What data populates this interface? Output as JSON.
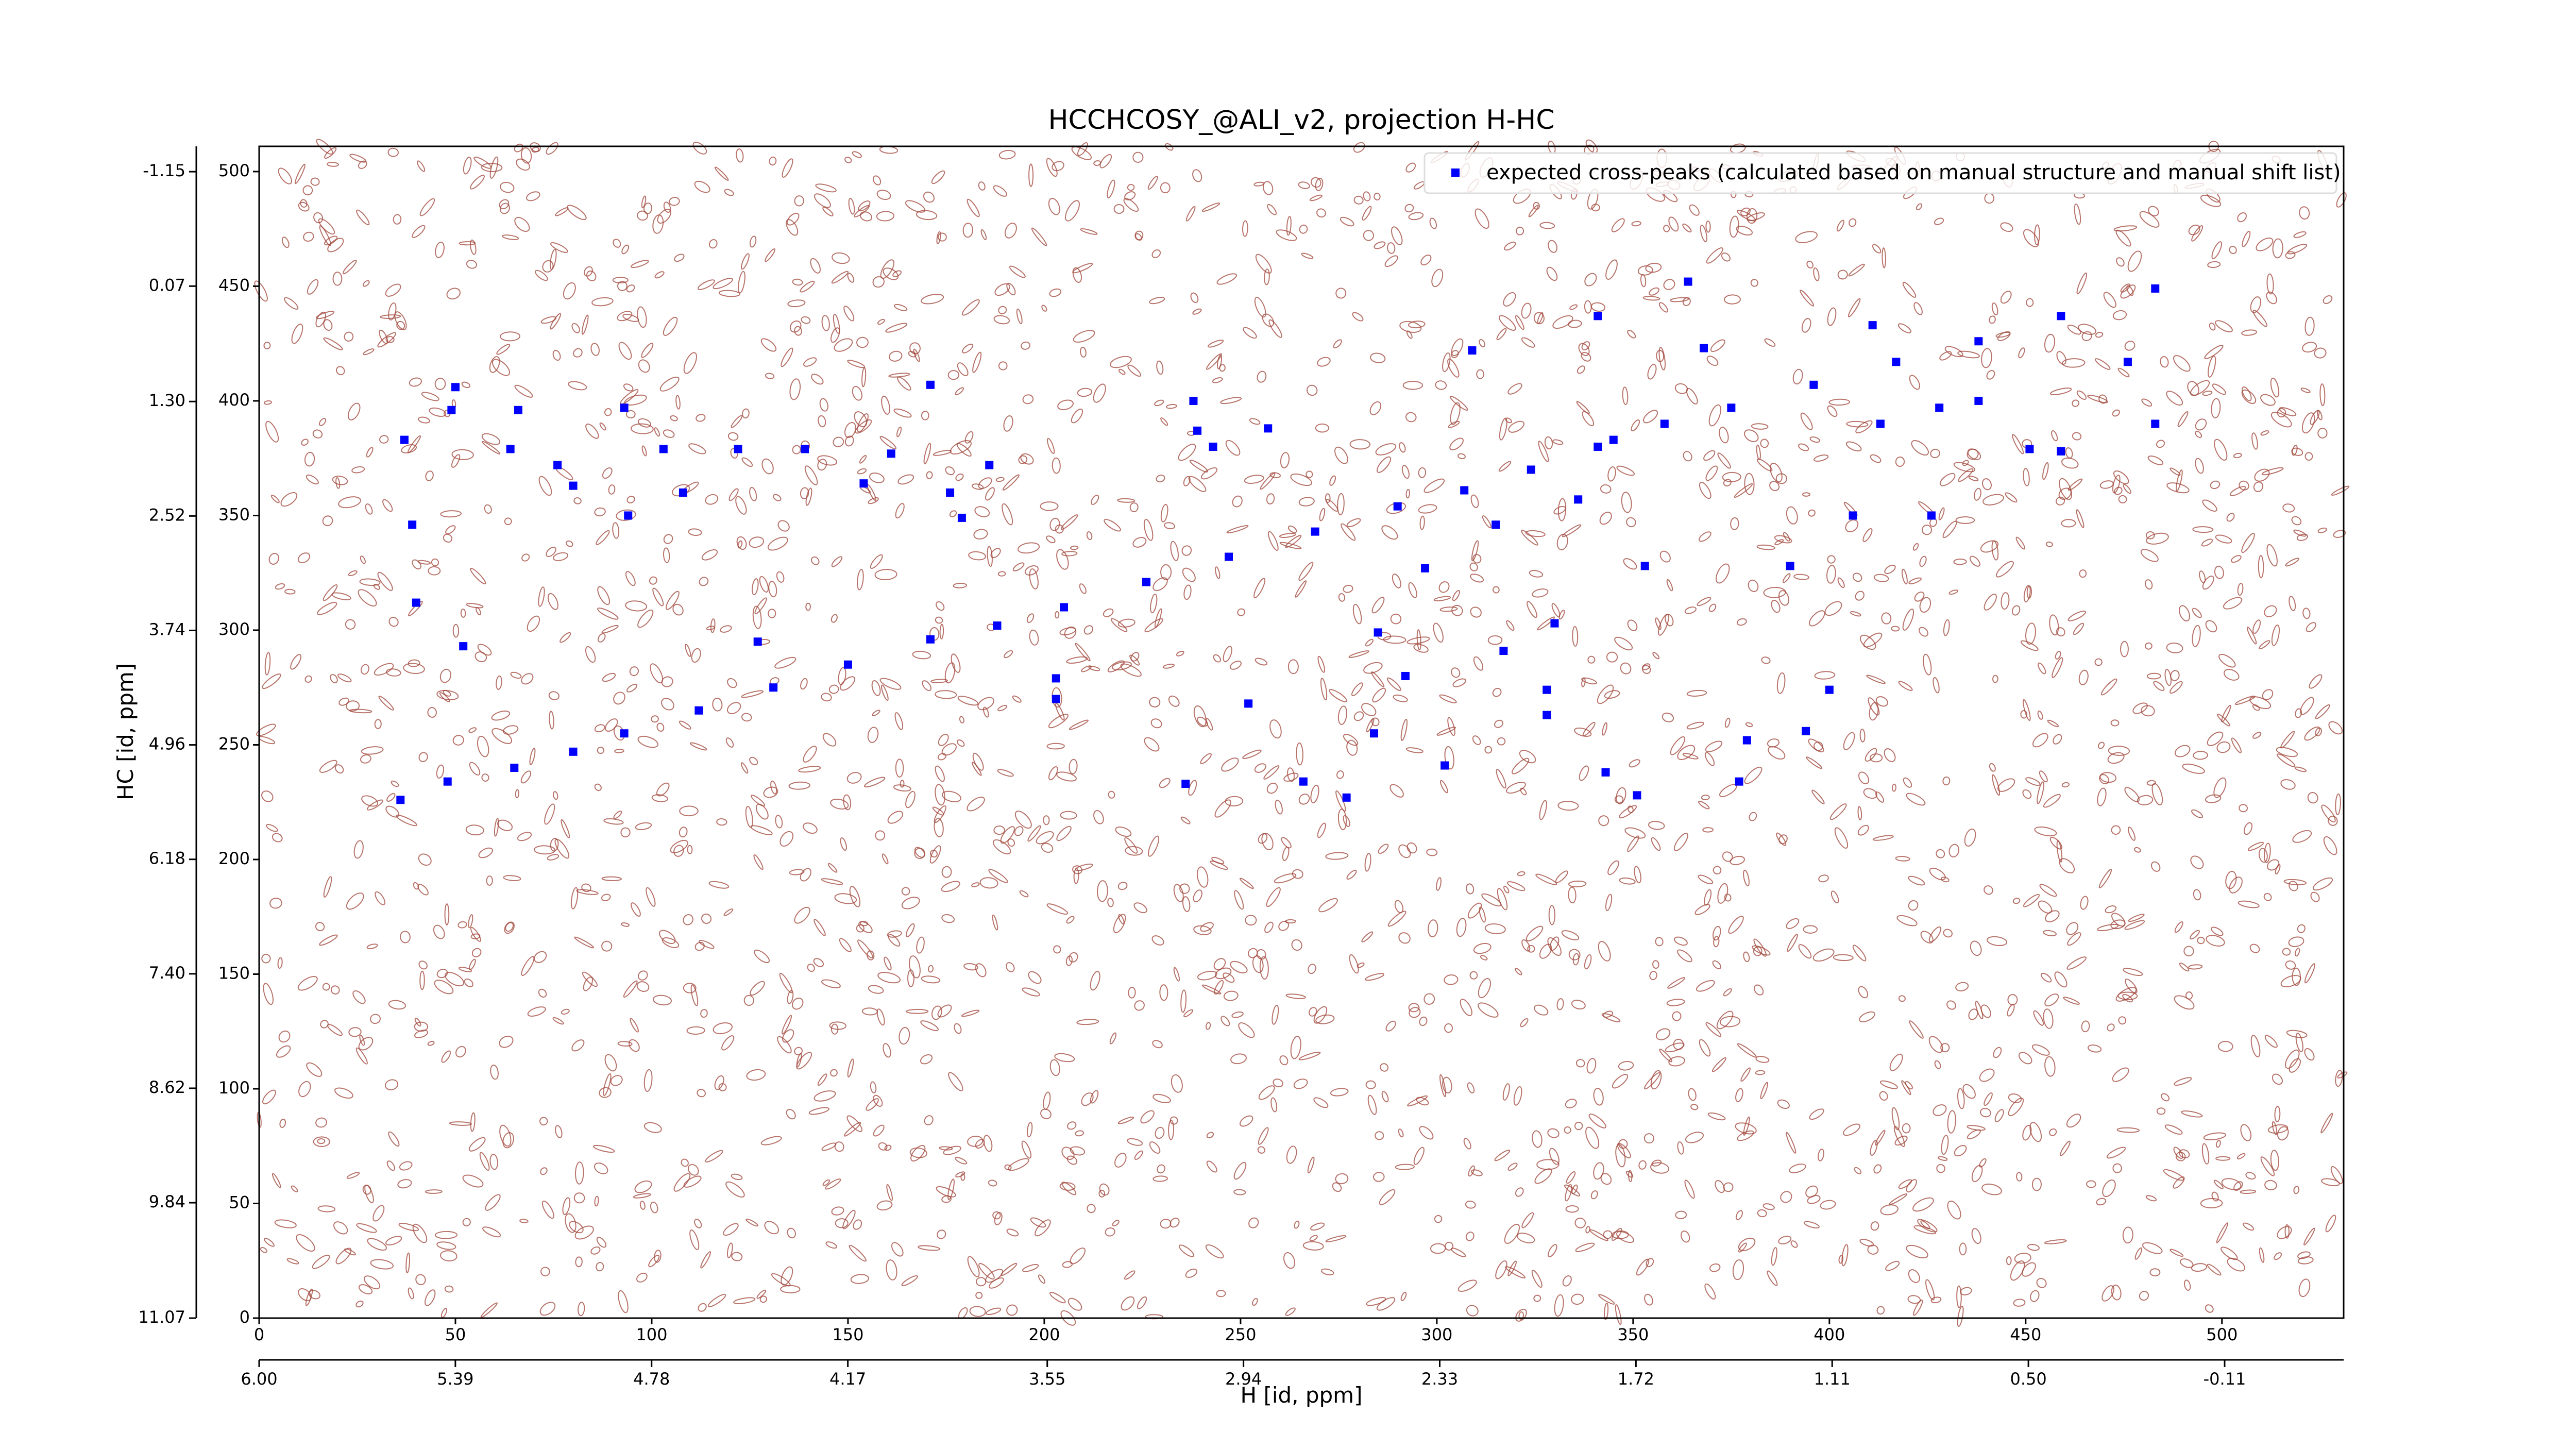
{
  "chart_data": {
    "type": "scatter",
    "title": "HCCHCOSY_@ALI_v2, projection H-HC",
    "x_label": "H [id, ppm]",
    "y_label": "HC [id, ppm]",
    "legend": "upper right",
    "xlim": [
      0,
      531
    ],
    "xticks": [
      0,
      50,
      100,
      150,
      200,
      250,
      300,
      350,
      400,
      450,
      500
    ],
    "ylim": [
      0,
      511
    ],
    "yticks": [
      0,
      50,
      100,
      150,
      200,
      250,
      300,
      350,
      400,
      450,
      500
    ],
    "x2lim": [
      6.0,
      -0.48
    ],
    "x2ticks": [
      {
        "value": 6.0,
        "label": "6.00"
      },
      5.39,
      4.78,
      4.17,
      3.55,
      2.94,
      2.33,
      1.72,
      1.11,
      {
        "value": 0.5,
        "label": "0.50"
      },
      -0.11
    ],
    "y2lim": [
      11.07,
      -1.42
    ],
    "y2ticks": [
      11.07,
      9.84,
      8.62,
      {
        "value": 7.4,
        "label": "7.40"
      },
      6.18,
      4.96,
      3.74,
      2.52,
      {
        "value": 1.3,
        "label": "1.30"
      },
      0.07,
      -1.15
    ],
    "x": [
      36,
      48,
      65,
      80,
      93,
      112,
      131,
      150,
      171,
      188,
      205,
      226,
      247,
      269,
      290,
      307,
      324,
      341,
      358,
      375,
      396,
      417,
      438,
      459,
      483,
      39,
      40,
      52,
      50,
      49,
      37,
      64,
      66,
      76,
      80,
      93,
      94,
      103,
      108,
      122,
      127,
      139,
      154,
      161,
      171,
      176,
      179,
      186,
      203,
      203,
      236,
      238,
      239,
      243,
      252,
      257,
      266,
      277,
      285,
      292,
      284,
      297,
      302,
      309,
      317,
      328,
      330,
      328,
      341,
      343,
      351,
      353,
      364,
      368,
      377,
      379,
      390,
      394,
      400,
      406,
      411,
      413,
      426,
      428,
      438,
      451,
      459,
      476,
      483,
      345,
      336,
      315
    ],
    "series": [
      {
        "name": "expected cross-peaks (calculated based on manual structure and manual shift list)",
        "color": "#0000ff",
        "values": [
          226,
          234,
          240,
          247,
          255,
          265,
          275,
          285,
          296,
          302,
          310,
          321,
          332,
          343,
          354,
          361,
          370,
          380,
          390,
          397,
          407,
          417,
          426,
          437,
          449,
          346,
          312,
          293,
          406,
          396,
          383,
          379,
          396,
          372,
          363,
          397,
          350,
          379,
          360,
          379,
          295,
          379,
          364,
          377,
          407,
          360,
          349,
          372,
          270,
          279,
          233,
          400,
          387,
          380,
          268,
          388,
          234,
          227,
          299,
          280,
          255,
          327,
          241,
          422,
          291,
          274,
          303,
          263,
          437,
          238,
          228,
          328,
          452,
          423,
          234,
          252,
          328,
          256,
          274,
          350,
          433,
          390,
          350,
          397,
          400,
          379,
          378,
          417,
          390,
          383,
          357,
          346
        ]
      }
    ]
  }
}
